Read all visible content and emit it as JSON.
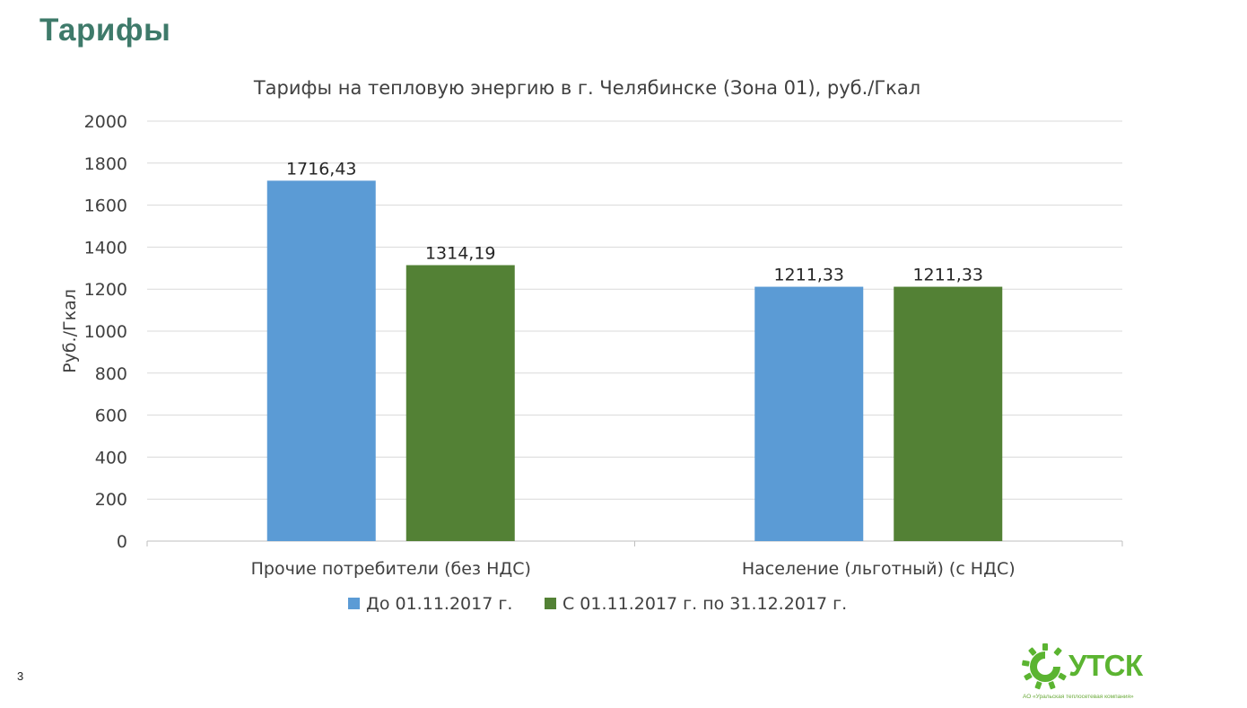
{
  "slide": {
    "title": "Тарифы",
    "page_number": "3"
  },
  "logo": {
    "text": "УТСК",
    "caption": "АО «Уральская теплосетевая компания»",
    "color": "#5bb431"
  },
  "colors": {
    "title": "#3e7a6a",
    "series_1": "#5b9bd5",
    "series_2": "#538135",
    "grid": "#d9d9d9"
  },
  "chart_data": {
    "type": "bar",
    "title": "Тарифы на тепловую энергию в г. Челябинске (Зона 01), руб./Гкал",
    "xlabel": "",
    "ylabel": "Руб./Гкал",
    "ylim": [
      0,
      2000
    ],
    "yticks": [
      "0",
      "200",
      "400",
      "600",
      "800",
      "1000",
      "1200",
      "1400",
      "1600",
      "1800",
      "2000"
    ],
    "grid": true,
    "legend_position": "bottom",
    "categories": [
      "Прочие потребители (без НДС)",
      "Население (льготный) (с НДС)"
    ],
    "series": [
      {
        "name": "До 01.11.2017 г.",
        "color": "#5b9bd5",
        "values": [
          1716.43,
          1211.33
        ],
        "labels": [
          "1716,43",
          "1211,33"
        ]
      },
      {
        "name": "С 01.11.2017 г. по 31.12.2017 г.",
        "color": "#538135",
        "values": [
          1314.19,
          1211.33
        ],
        "labels": [
          "1314,19",
          "1211,33"
        ]
      }
    ]
  }
}
